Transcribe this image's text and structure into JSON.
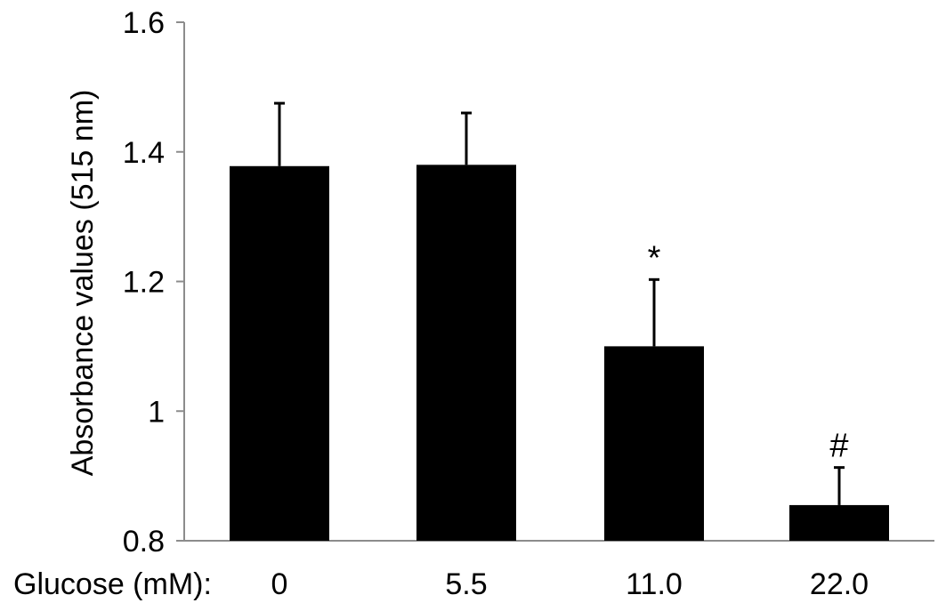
{
  "chart_data": {
    "type": "bar",
    "categories": [
      "0",
      "5.5",
      "11.0",
      "22.0"
    ],
    "values": [
      1.378,
      1.38,
      1.1,
      0.855
    ],
    "errors": [
      0.097,
      0.08,
      0.103,
      0.058
    ],
    "annotations": [
      "",
      "",
      "*",
      "#"
    ],
    "ylabel": "Absorbance values (515 nm)",
    "xlabel": "Glucose (mM):",
    "ylim": [
      0.8,
      1.6
    ],
    "yticks": [
      0.8,
      1,
      1.2,
      1.4,
      1.6
    ],
    "ytick_labels": [
      "0.8",
      "1",
      "1.2",
      "1.4",
      "1.6"
    ],
    "grid": false,
    "bar_color": "#000000"
  }
}
